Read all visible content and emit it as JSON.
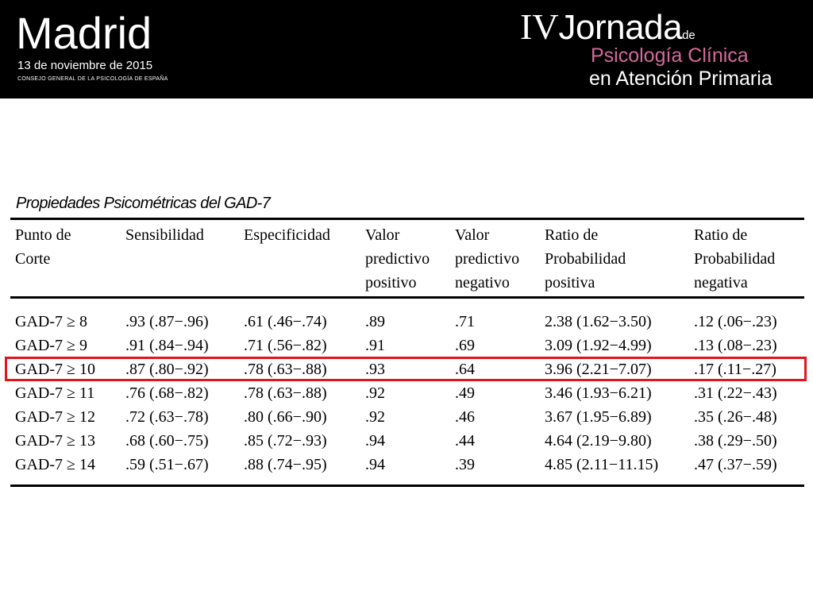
{
  "banner": {
    "city": "Madrid",
    "date": "13 de noviembre de 2015",
    "organization": "CONSEJO GENERAL DE LA PSICOLOGÍA DE ESPAÑA",
    "event_number": "IV",
    "event_word": "Jornada",
    "event_de": "de",
    "event_line1": "Psicología Clínica",
    "event_line2": "en Atención Primaria"
  },
  "caption": "Propiedades Psicométricas del GAD-7",
  "table": {
    "headers": [
      "Punto de\nCorte",
      "Sensibilidad",
      "Especificidad",
      "Valor\npredictivo\npositivo",
      "Valor\npredictivo\nnegativo",
      "Ratio de\nProbabilidad\npositiva",
      "Ratio de\nProbabilidad\nnegativa"
    ],
    "rows": [
      [
        "GAD-7 ≥ 8",
        ".93 (.87−.96)",
        ".61 (.46−.74)",
        ".89",
        ".71",
        "2.38 (1.62−3.50)",
        ".12 (.06−.23)"
      ],
      [
        "GAD-7 ≥ 9",
        ".91 (.84−.94)",
        ".71 (.56−.82)",
        ".91",
        ".69",
        "3.09 (1.92−4.99)",
        ".13 (.08−.23)"
      ],
      [
        "GAD-7 ≥ 10",
        ".87 (.80−.92)",
        ".78 (.63−.88)",
        ".93",
        ".64",
        "3.96 (2.21−7.07)",
        ".17 (.11−.27)"
      ],
      [
        "GAD-7 ≥ 11",
        ".76 (.68−.82)",
        ".78 (.63−.88)",
        ".92",
        ".49",
        "3.46 (1.93−6.21)",
        ".31 (.22−.43)"
      ],
      [
        "GAD-7 ≥ 12",
        ".72 (.63−.78)",
        ".80 (.66−.90)",
        ".92",
        ".46",
        "3.67 (1.95−6.89)",
        ".35 (.26−.48)"
      ],
      [
        "GAD-7 ≥ 13",
        ".68 (.60−.75)",
        ".85 (.72−.93)",
        ".94",
        ".44",
        "4.64 (2.19−9.80)",
        ".38 (.29−.50)"
      ],
      [
        "GAD-7 ≥ 14",
        ".59 (.51−.67)",
        ".88 (.74−.95)",
        ".94",
        ".39",
        "4.85 (2.11−11.15)",
        ".47 (.37−.59)"
      ]
    ],
    "highlighted_row": 2
  },
  "colors": {
    "banner_bg": "#000000",
    "accent_pink": "#d36a9b",
    "highlight_red": "#e3141b"
  }
}
